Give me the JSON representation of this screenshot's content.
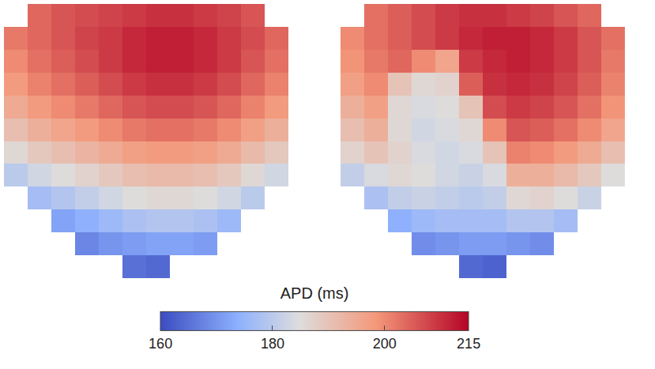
{
  "chart_data": {
    "type": "heatmap",
    "cells": [
      [
        [
          null,
          204,
          206,
          207,
          208,
          209,
          210,
          210,
          209,
          208,
          206,
          null
        ],
        [
          202,
          204,
          206,
          208,
          209,
          211,
          212,
          212,
          211,
          209,
          207,
          204
        ],
        [
          200,
          203,
          205,
          207,
          209,
          211,
          212,
          212,
          211,
          209,
          206,
          203
        ],
        [
          198,
          201,
          203,
          205,
          207,
          209,
          210,
          210,
          209,
          207,
          204,
          201
        ],
        [
          195,
          198,
          200,
          202,
          204,
          206,
          207,
          207,
          206,
          204,
          201,
          198
        ],
        [
          191,
          194,
          196,
          198,
          200,
          202,
          203,
          203,
          202,
          200,
          197,
          194
        ],
        [
          186,
          189,
          191,
          193,
          195,
          197,
          198,
          198,
          197,
          195,
          192,
          189
        ],
        [
          180,
          183,
          185,
          187,
          189,
          191,
          192,
          192,
          191,
          189,
          186,
          183
        ],
        [
          null,
          177,
          179,
          181,
          183,
          185,
          186,
          186,
          185,
          183,
          180,
          null
        ],
        [
          null,
          null,
          172,
          174,
          176,
          178,
          179,
          179,
          178,
          176,
          null,
          null
        ],
        [
          null,
          null,
          null,
          168,
          170,
          171,
          172,
          172,
          171,
          null,
          null,
          null
        ],
        [
          null,
          null,
          null,
          null,
          null,
          165,
          164,
          null,
          null,
          null,
          null,
          null
        ]
      ],
      [
        [
          null,
          203,
          205,
          207,
          209,
          210,
          210,
          209,
          208,
          206,
          204,
          null
        ],
        [
          200,
          203,
          205,
          207,
          209,
          211,
          212,
          212,
          211,
          209,
          206,
          203
        ],
        [
          199,
          202,
          204,
          200,
          196,
          209,
          211,
          212,
          211,
          209,
          206,
          202
        ],
        [
          197,
          200,
          190,
          186,
          187,
          205,
          210,
          211,
          210,
          208,
          205,
          201
        ],
        [
          194,
          197,
          186,
          184,
          185,
          190,
          207,
          209,
          208,
          206,
          203,
          199
        ],
        [
          191,
          194,
          186,
          183,
          184,
          186,
          200,
          206,
          205,
          203,
          200,
          196
        ],
        [
          187,
          190,
          187,
          184,
          183,
          184,
          190,
          201,
          200,
          198,
          195,
          191
        ],
        [
          181,
          184,
          186,
          185,
          183,
          182,
          184,
          194,
          194,
          192,
          189,
          185
        ],
        [
          null,
          178,
          181,
          182,
          181,
          180,
          181,
          186,
          187,
          185,
          182,
          null
        ],
        [
          null,
          null,
          174,
          176,
          177,
          177,
          177,
          179,
          179,
          177,
          null,
          null
        ],
        [
          null,
          null,
          null,
          169,
          170,
          171,
          171,
          170,
          169,
          null,
          null,
          null
        ],
        [
          null,
          null,
          null,
          null,
          null,
          164,
          163,
          null,
          null,
          null,
          null,
          null
        ]
      ]
    ],
    "colorbar_title": "APD (ms)",
    "zlim": [
      160,
      215
    ],
    "zticks": [
      160,
      180,
      200,
      215
    ],
    "tick_labels": false
  }
}
